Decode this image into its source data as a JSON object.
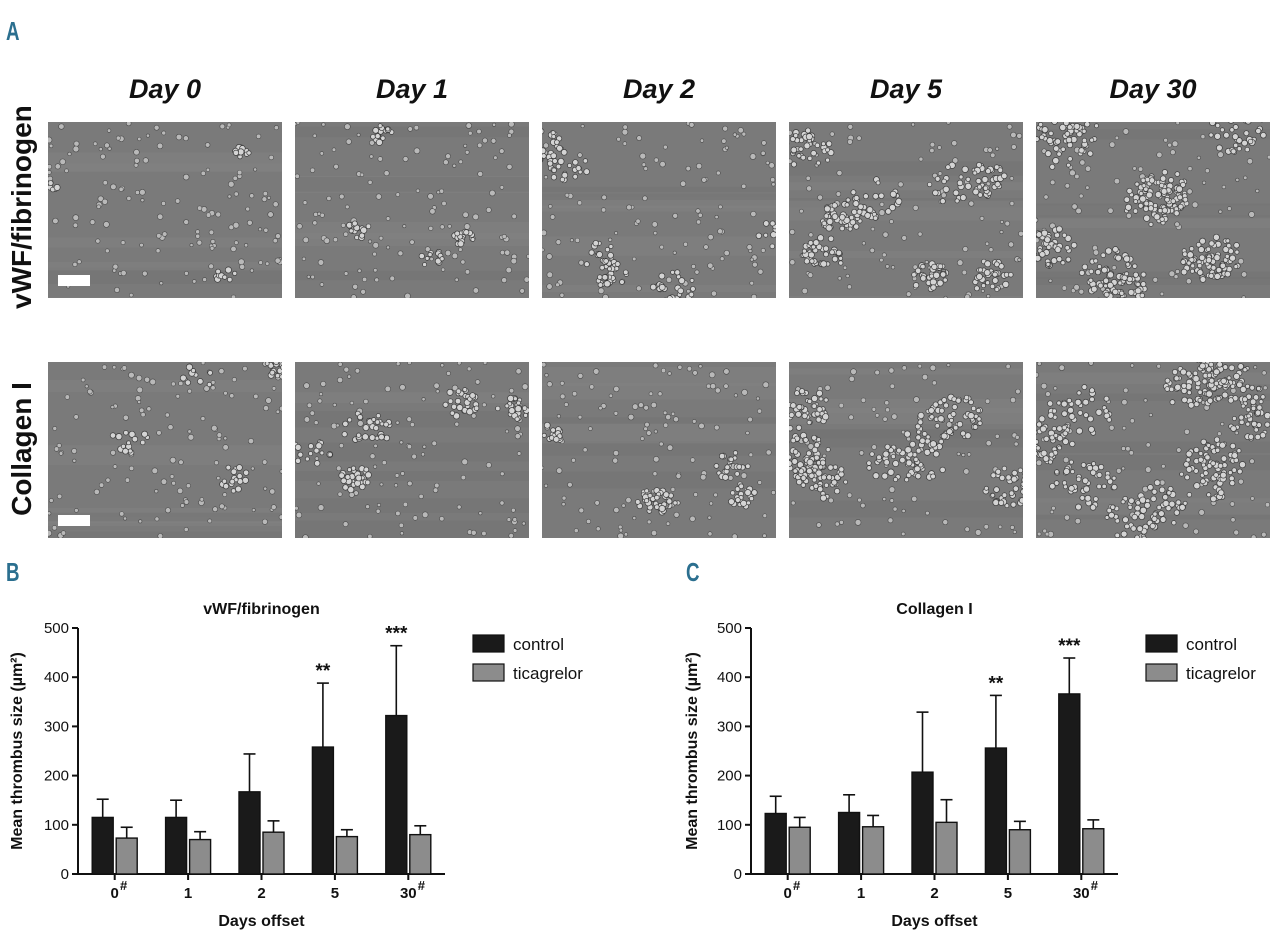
{
  "panels": {
    "a": {
      "letter": "A"
    },
    "b": {
      "letter": "B"
    },
    "c": {
      "letter": "C"
    }
  },
  "micrograph_grid": {
    "columns": [
      "Day 0",
      "Day 1",
      "Day 2",
      "Day 5",
      "Day 30"
    ],
    "rows": [
      "vWF/fibrinogen",
      "Collagen I"
    ],
    "clumping_level": [
      [
        0.1,
        0.25,
        0.45,
        0.65,
        1.0
      ],
      [
        0.3,
        0.45,
        0.35,
        0.75,
        1.0
      ]
    ]
  },
  "colors": {
    "control": "#1a1a1a",
    "ticagrelor": "#8c8c8c",
    "panel_letter": "#2b6f8f",
    "micrograph_bg": "#7a7a7a"
  },
  "chart_data": [
    {
      "type": "bar",
      "title": "vWF/fibrinogen",
      "xlabel": "Days offset",
      "ylabel": "Mean thrombus size (µm²)",
      "ylim": [
        0,
        500
      ],
      "yticks": [
        "0",
        "100",
        "200",
        "300",
        "400",
        "500"
      ],
      "categories": [
        "0",
        "1",
        "2",
        "5",
        "30"
      ],
      "category_marks": [
        "#",
        "",
        "",
        "",
        "#"
      ],
      "series": [
        {
          "name": "control",
          "values": [
            115,
            115,
            167,
            258,
            322
          ],
          "errors": [
            37,
            35,
            77,
            130,
            142
          ]
        },
        {
          "name": "ticagrelor",
          "values": [
            73,
            70,
            85,
            76,
            80
          ],
          "errors": [
            22,
            16,
            23,
            14,
            18
          ]
        }
      ],
      "annotations": [
        "",
        "",
        "",
        "**",
        "***"
      ],
      "legend": "right"
    },
    {
      "type": "bar",
      "title": "Collagen I",
      "xlabel": "Days offset",
      "ylabel": "Mean thrombus size (µm²)",
      "ylim": [
        0,
        500
      ],
      "yticks": [
        "0",
        "100",
        "200",
        "300",
        "400",
        "500"
      ],
      "categories": [
        "0",
        "1",
        "2",
        "5",
        "30"
      ],
      "category_marks": [
        "#",
        "",
        "",
        "",
        "#"
      ],
      "series": [
        {
          "name": "control",
          "values": [
            123,
            125,
            207,
            256,
            366
          ],
          "errors": [
            35,
            36,
            122,
            107,
            73
          ]
        },
        {
          "name": "ticagrelor",
          "values": [
            95,
            96,
            105,
            90,
            92
          ],
          "errors": [
            20,
            23,
            46,
            17,
            18
          ]
        }
      ],
      "annotations": [
        "",
        "",
        "",
        "**",
        "***"
      ],
      "legend": "right"
    }
  ]
}
